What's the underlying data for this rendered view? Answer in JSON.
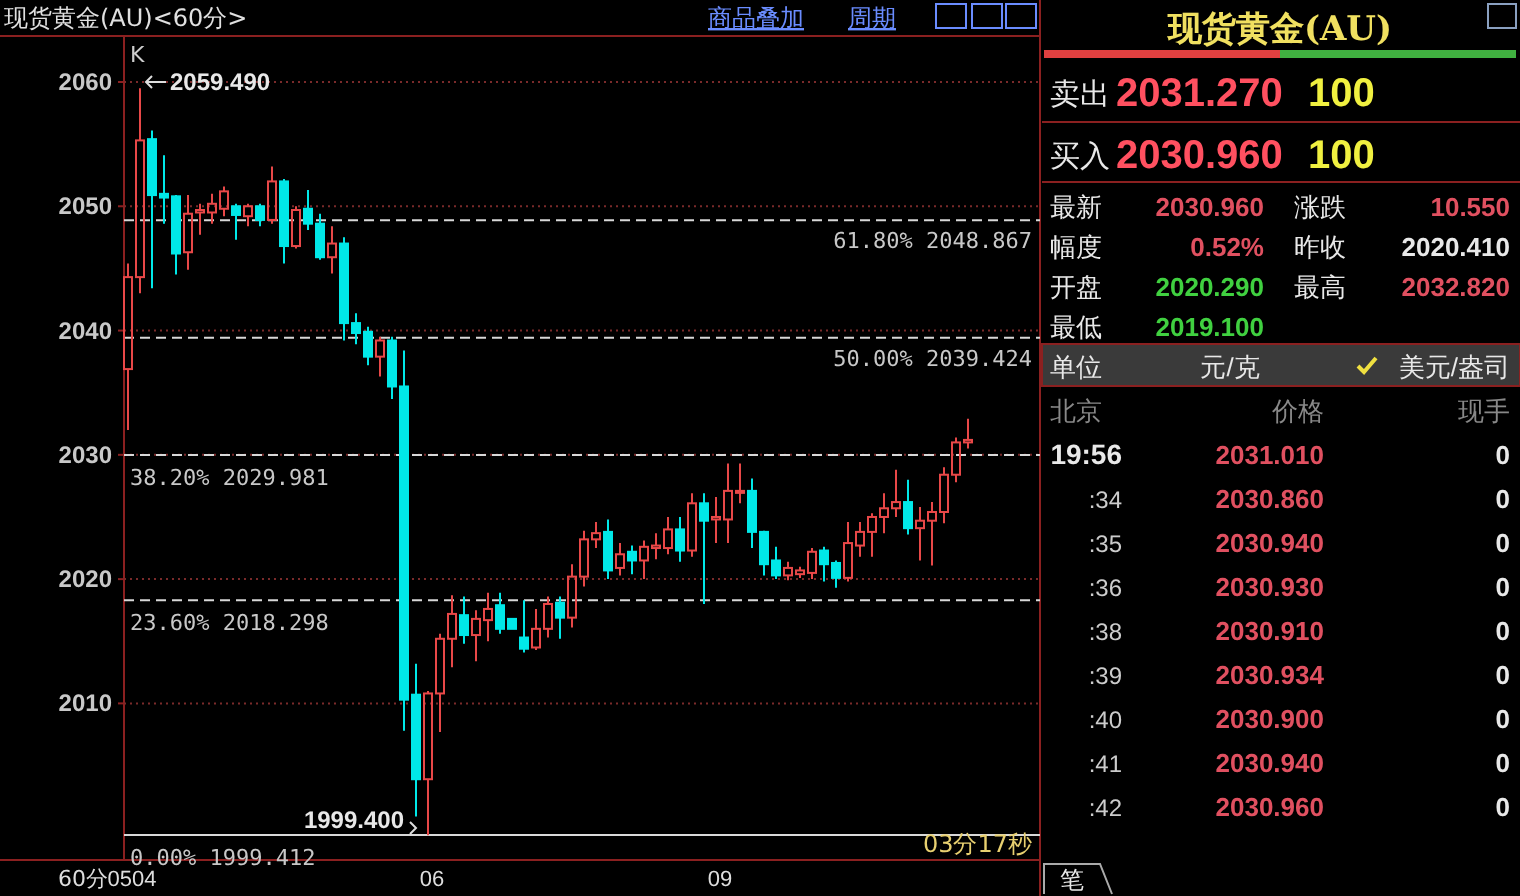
{
  "chart_data": [
    {
      "type": "candlestick",
      "title": "现货黄金(AU)<60分>",
      "categories": [
        "0504",
        null,
        null,
        null,
        null,
        null,
        null,
        null,
        null,
        null,
        null,
        null,
        null,
        null,
        null,
        null,
        null,
        null,
        null,
        null,
        null,
        null,
        null,
        null,
        null,
        "06",
        null,
        null,
        null,
        null,
        null,
        null,
        null,
        null,
        null,
        null,
        null,
        null,
        null,
        null,
        null,
        null,
        null,
        null,
        null,
        null,
        null,
        null,
        null,
        "09",
        null,
        null,
        null,
        null,
        null,
        null,
        null,
        null,
        null,
        null,
        null,
        null,
        null,
        null,
        null,
        null,
        null,
        null,
        null,
        null,
        null
      ],
      "ohlc": [
        [
          2036.9,
          2045.4,
          2032.0,
          2044.3
        ],
        [
          2044.3,
          2059.49,
          2043.0,
          2055.3
        ],
        [
          2055.4,
          2056.1,
          2043.4,
          2050.9
        ],
        [
          2051.0,
          2054.1,
          2048.6,
          2050.7
        ],
        [
          2050.8,
          2050.9,
          2044.5,
          2046.2
        ],
        [
          2046.3,
          2050.9,
          2044.9,
          2049.4
        ],
        [
          2049.5,
          2050.2,
          2047.7,
          2049.7
        ],
        [
          2049.5,
          2051.0,
          2048.6,
          2050.2
        ],
        [
          2049.8,
          2051.6,
          2049.2,
          2051.2
        ],
        [
          2050.0,
          2050.2,
          2047.3,
          2049.3
        ],
        [
          2049.2,
          2050.2,
          2048.4,
          2050.0
        ],
        [
          2050.0,
          2050.2,
          2048.4,
          2048.9
        ],
        [
          2048.9,
          2053.2,
          2048.6,
          2052.0
        ],
        [
          2052.0,
          2052.2,
          2045.4,
          2046.8
        ],
        [
          2046.8,
          2050.0,
          2046.6,
          2049.7
        ],
        [
          2049.8,
          2051.3,
          2048.1,
          2048.6
        ],
        [
          2048.6,
          2049.4,
          2045.7,
          2045.9
        ],
        [
          2045.9,
          2048.4,
          2044.6,
          2047.0
        ],
        [
          2047.0,
          2047.5,
          2039.2,
          2040.6
        ],
        [
          2040.6,
          2041.4,
          2038.9,
          2039.8
        ],
        [
          2039.9,
          2040.3,
          2037.2,
          2037.9
        ],
        [
          2037.9,
          2039.5,
          2036.3,
          2039.2
        ],
        [
          2039.2,
          2039.5,
          2034.5,
          2035.5
        ],
        [
          2035.5,
          2038.4,
          2007.8,
          2010.3
        ],
        [
          2010.7,
          2013.2,
          2000.9,
          2003.9
        ],
        [
          2003.9,
          2011.0,
          1999.4,
          2010.8
        ],
        [
          2010.8,
          2015.6,
          2007.7,
          2015.2
        ],
        [
          2015.2,
          2018.7,
          2012.9,
          2017.2
        ],
        [
          2017.1,
          2018.6,
          2014.8,
          2015.5
        ],
        [
          2015.5,
          2017.5,
          2013.4,
          2016.8
        ],
        [
          2016.7,
          2018.9,
          2015.0,
          2017.6
        ],
        [
          2017.9,
          2018.9,
          2015.6,
          2016.0
        ],
        [
          2016.8,
          2016.8,
          2016.0,
          2016.0
        ],
        [
          2015.3,
          2018.3,
          2014.1,
          2014.4
        ],
        [
          2014.5,
          2017.6,
          2014.3,
          2016.0
        ],
        [
          2016.0,
          2018.6,
          2015.3,
          2018.0
        ],
        [
          2018.1,
          2018.6,
          2015.2,
          2016.9
        ],
        [
          2016.9,
          2021.2,
          2016.1,
          2020.2
        ],
        [
          2020.2,
          2023.9,
          2019.4,
          2023.2
        ],
        [
          2023.2,
          2024.6,
          2022.5,
          2023.7
        ],
        [
          2023.8,
          2024.8,
          2020.0,
          2020.7
        ],
        [
          2020.9,
          2022.9,
          2020.3,
          2022.0
        ],
        [
          2022.2,
          2022.7,
          2020.4,
          2021.5
        ],
        [
          2021.5,
          2023.1,
          2020.0,
          2022.6
        ],
        [
          2022.5,
          2023.7,
          2021.6,
          2022.7
        ],
        [
          2022.5,
          2025.0,
          2022.0,
          2024.0
        ],
        [
          2024.0,
          2025.0,
          2021.4,
          2022.3
        ],
        [
          2022.3,
          2026.9,
          2021.8,
          2026.1
        ],
        [
          2026.1,
          2026.9,
          2018.0,
          2024.7
        ],
        [
          2024.8,
          2026.6,
          2022.9,
          2025.0
        ],
        [
          2024.8,
          2029.3,
          2022.9,
          2027.1
        ],
        [
          2027.0,
          2029.3,
          2026.1,
          2027.1
        ],
        [
          2027.1,
          2028.1,
          2022.5,
          2023.8
        ],
        [
          2023.8,
          2023.9,
          2020.3,
          2021.2
        ],
        [
          2021.5,
          2022.6,
          2020.0,
          2020.3
        ],
        [
          2020.3,
          2021.4,
          2019.9,
          2020.9
        ],
        [
          2020.4,
          2021.0,
          2020.1,
          2020.7
        ],
        [
          2020.5,
          2022.5,
          2020.0,
          2022.2
        ],
        [
          2022.3,
          2022.6,
          2019.8,
          2021.2
        ],
        [
          2021.3,
          2021.5,
          2019.3,
          2020.1
        ],
        [
          2020.1,
          2024.6,
          2019.8,
          2022.9
        ],
        [
          2022.7,
          2024.6,
          2021.8,
          2023.8
        ],
        [
          2023.8,
          2025.3,
          2021.8,
          2025.0
        ],
        [
          2025.0,
          2026.9,
          2023.7,
          2025.7
        ],
        [
          2025.7,
          2028.8,
          2025.0,
          2026.2
        ],
        [
          2026.2,
          2028.0,
          2023.6,
          2024.1
        ],
        [
          2024.1,
          2025.8,
          2021.5,
          2024.7
        ],
        [
          2024.7,
          2026.2,
          2021.1,
          2025.4
        ],
        [
          2025.4,
          2029.0,
          2024.5,
          2028.4
        ],
        [
          2028.4,
          2031.4,
          2027.8,
          2031.0
        ],
        [
          2031.0,
          2032.9,
          2030.5,
          2031.2
        ]
      ],
      "ylim": [
        1997.4,
        2063.7
      ],
      "yticks": [
        2010,
        2020,
        2030,
        2040,
        2050,
        2060
      ],
      "grid": "y",
      "ref_lines": [
        {
          "axis": "y",
          "value": 2048.867,
          "label": "61.80% 2048.867",
          "line_style": "dashed"
        },
        {
          "axis": "y",
          "value": 2039.424,
          "label": "50.00% 2039.424",
          "line_style": "dashed"
        },
        {
          "axis": "y",
          "value": 2029.981,
          "label": "38.20% 2029.981",
          "line_style": "dashed"
        },
        {
          "axis": "y",
          "value": 2018.298,
          "label": "23.60% 2018.298",
          "line_style": "dashed"
        },
        {
          "axis": "y",
          "value": 1999.412,
          "label": "0.00% 1999.412",
          "line_style": "solid"
        }
      ],
      "xlabel": "60分",
      "annotations": [
        "K",
        "2059.490",
        "1999.400",
        "03分17秒",
        "商品叠加",
        "周期"
      ]
    },
    {
      "type": "other",
      "title": "现货黄金(AU)",
      "annotations": [
        "卖出",
        "2031.270",
        "100",
        "买入",
        "2030.960",
        "100",
        "最新",
        "2030.960",
        "涨跌",
        "10.550",
        "幅度",
        "0.52%",
        "昨收",
        "2020.410",
        "开盘",
        "2020.290",
        "最高",
        "2032.820",
        "最低",
        "2019.100",
        "单位",
        "元/克",
        "美元/盎司",
        "北京",
        "价格",
        "现手",
        "19:56",
        "2031.010",
        "0",
        ":34",
        "2030.860",
        "0",
        ":35",
        "2030.940",
        "0",
        ":36",
        "2030.930",
        "0",
        ":38",
        "2030.910",
        "0",
        ":39",
        "2030.934",
        "0",
        ":40",
        "2030.900",
        "0",
        ":41",
        "2030.940",
        "0",
        ":42",
        "2030.960",
        "0",
        "笔"
      ]
    }
  ]
}
